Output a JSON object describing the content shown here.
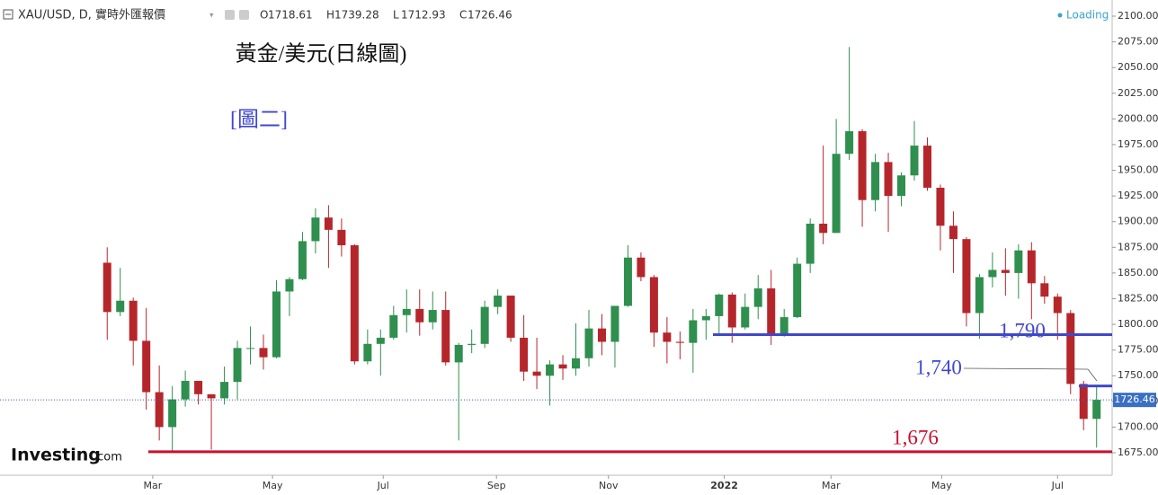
{
  "chart_data": {
    "type": "candlestick",
    "header": {
      "symbol": "XAU/USD, D, 實時外匯報價",
      "ohlc": [
        {
          "key": "O",
          "value": 1718.61
        },
        {
          "key": "H",
          "value": 1739.28
        },
        {
          "key": "L",
          "value": 1712.93
        },
        {
          "key": "C",
          "value": 1726.46
        }
      ],
      "status": "Loading"
    },
    "title": "黃金/美元(日線圖)",
    "subtitle": "[圖二]",
    "logo": {
      "brand": "Investing",
      "suffix": ".com"
    },
    "up_color": "#2f8f4e",
    "down_color": "#b5262b",
    "open": [
      1860,
      1812,
      1823,
      1784,
      1734,
      1700,
      1727,
      1745,
      1732,
      1728,
      1744,
      1777,
      1777,
      1768,
      1832,
      1844,
      1881,
      1904,
      1892,
      1877,
      1764,
      1781,
      1787,
      1809,
      1815,
      1802,
      1814,
      1763,
      1780,
      1781,
      1817,
      1828,
      1787,
      1754,
      1750,
      1761,
      1757,
      1767,
      1796,
      1783,
      1818,
      1865,
      1846,
      1792,
      1783,
      1782,
      1804,
      1808,
      1829,
      1797,
      1817,
      1835,
      1791,
      1807,
      1859,
      1898,
      1889,
      1966,
      1988,
      1921,
      1958,
      1925,
      1945,
      1974,
      1933,
      1896,
      1883,
      1811,
      1846,
      1853,
      1850,
      1872,
      1840,
      1827,
      1811,
      1742,
      1708
    ],
    "high": [
      1875,
      1855,
      1826,
      1816,
      1760,
      1740,
      1755,
      1745,
      1732,
      1759,
      1784,
      1798,
      1790,
      1843,
      1846,
      1890,
      1913,
      1916,
      1903,
      1878,
      1795,
      1795,
      1818,
      1834,
      1834,
      1832,
      1832,
      1782,
      1795,
      1823,
      1834,
      1828,
      1809,
      1787,
      1765,
      1770,
      1801,
      1814,
      1810,
      1818,
      1877,
      1870,
      1848,
      1807,
      1793,
      1815,
      1815,
      1830,
      1831,
      1830,
      1848,
      1853,
      1815,
      1865,
      1903,
      1974,
      2000,
      2070,
      1990,
      1966,
      1967,
      1948,
      1998,
      1982,
      1936,
      1910,
      1885,
      1849,
      1870,
      1874,
      1878,
      1880,
      1847,
      1830,
      1814,
      1745,
      1739.28
    ],
    "low": [
      1785,
      1808,
      1760,
      1717,
      1687,
      1676,
      1720,
      1722,
      1678,
      1722,
      1727,
      1761,
      1756,
      1767,
      1808,
      1843,
      1869,
      1855,
      1866,
      1761,
      1761,
      1750,
      1785,
      1792,
      1789,
      1795,
      1760,
      1687,
      1772,
      1777,
      1810,
      1783,
      1745,
      1737,
      1721,
      1746,
      1750,
      1759,
      1770,
      1758,
      1817,
      1842,
      1778,
      1762,
      1766,
      1753,
      1785,
      1790,
      1782,
      1795,
      1805,
      1780,
      1788,
      1806,
      1850,
      1878,
      1889,
      1960,
      1895,
      1910,
      1890,
      1915,
      1940,
      1930,
      1872,
      1850,
      1798,
      1786,
      1836,
      1828,
      1825,
      1805,
      1820,
      1785,
      1732,
      1697,
      1680
    ],
    "close": [
      1812,
      1823,
      1784,
      1734,
      1700,
      1727,
      1745,
      1732,
      1728,
      1744,
      1777,
      1777,
      1768,
      1832,
      1844,
      1881,
      1904,
      1892,
      1877,
      1764,
      1781,
      1787,
      1809,
      1815,
      1802,
      1814,
      1763,
      1780,
      1781,
      1817,
      1828,
      1787,
      1754,
      1750,
      1761,
      1757,
      1767,
      1796,
      1783,
      1818,
      1865,
      1846,
      1792,
      1783,
      1782,
      1804,
      1808,
      1829,
      1797,
      1817,
      1835,
      1791,
      1807,
      1859,
      1898,
      1889,
      1966,
      1988,
      1921,
      1958,
      1925,
      1945,
      1974,
      1933,
      1896,
      1883,
      1811,
      1846,
      1853,
      1850,
      1872,
      1840,
      1827,
      1811,
      1742,
      1708,
      1726.46
    ],
    "xlim": [
      0,
      77
    ],
    "xticks": [
      {
        "value": 4,
        "label": "Mar"
      },
      {
        "value": 13.2,
        "label": "May"
      },
      {
        "value": 21.7,
        "label": "Jul"
      },
      {
        "value": 30.4,
        "label": "Sep"
      },
      {
        "value": 39,
        "label": "Nov"
      },
      {
        "value": 47.9,
        "label": "2022"
      },
      {
        "value": 56.1,
        "label": "Mar"
      },
      {
        "value": 64.6,
        "label": "May"
      },
      {
        "value": 73.5,
        "label": "Jul"
      }
    ],
    "ylim": [
      1662,
      2110
    ],
    "yticks": [
      {
        "value": 1675,
        "label": "1675.00"
      },
      {
        "value": 1700,
        "label": "1700.00"
      },
      {
        "value": 1725,
        "label": "1725.00"
      },
      {
        "value": 1750,
        "label": "1750.00"
      },
      {
        "value": 1775,
        "label": "1775.00"
      },
      {
        "value": 1800,
        "label": "1800.00"
      },
      {
        "value": 1825,
        "label": "1825.00"
      },
      {
        "value": 1850,
        "label": "1850.00"
      },
      {
        "value": 1875,
        "label": "1875.00"
      },
      {
        "value": 1900,
        "label": "1900.00"
      },
      {
        "value": 1925,
        "label": "1925.00"
      },
      {
        "value": 1950,
        "label": "1950.00"
      },
      {
        "value": 1975,
        "label": "1975.00"
      },
      {
        "value": 2000,
        "label": "2000.00"
      },
      {
        "value": 2025,
        "label": "2025.00"
      },
      {
        "value": 2050,
        "label": "2050.00"
      },
      {
        "value": 2075,
        "label": "2075.00"
      },
      {
        "value": 2100,
        "label": "2100.00"
      }
    ],
    "levels": [
      {
        "value": 1790,
        "label": "1,790",
        "color": "#3f48cc"
      },
      {
        "value": 1740,
        "label": "1,740",
        "color": "#3f48cc"
      },
      {
        "value": 1676,
        "label": "1,676",
        "color": "#c8102e"
      }
    ]
  }
}
